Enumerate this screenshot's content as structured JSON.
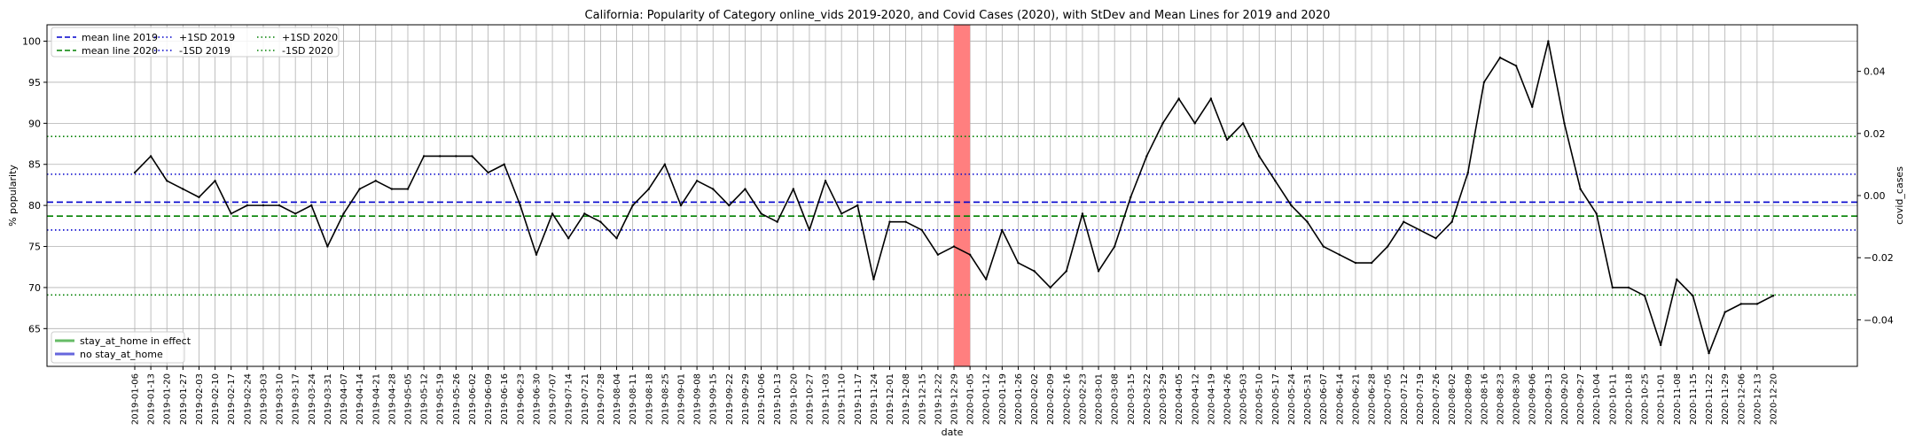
{
  "chart_data": {
    "type": "line",
    "title": "California: Popularity of Category online_vids 2019-2020, and Covid Cases (2020), with StDev and Mean Lines for 2019 and 2020",
    "xlabel": "date",
    "ylabel": "% popularity",
    "y2label": "covid_cases",
    "ylim": [
      60.4,
      102
    ],
    "y2lim": [
      -0.055,
      0.055
    ],
    "yticks": [
      65,
      70,
      75,
      80,
      85,
      90,
      95,
      100
    ],
    "y2ticks": [
      -0.04,
      -0.02,
      0.0,
      0.02,
      0.04
    ],
    "y2tick_labels": [
      "−0.04",
      "−0.02",
      "0.00",
      "0.02",
      "0.04"
    ],
    "grid": true,
    "x": [
      "2019-01-06",
      "2019-01-13",
      "2019-01-20",
      "2019-01-27",
      "2019-02-03",
      "2019-02-10",
      "2019-02-17",
      "2019-02-24",
      "2019-03-03",
      "2019-03-10",
      "2019-03-17",
      "2019-03-24",
      "2019-03-31",
      "2019-04-07",
      "2019-04-14",
      "2019-04-21",
      "2019-04-28",
      "2019-05-05",
      "2019-05-12",
      "2019-05-19",
      "2019-05-26",
      "2019-06-02",
      "2019-06-09",
      "2019-06-16",
      "2019-06-23",
      "2019-06-30",
      "2019-07-07",
      "2019-07-14",
      "2019-07-21",
      "2019-07-28",
      "2019-08-04",
      "2019-08-11",
      "2019-08-18",
      "2019-08-25",
      "2019-09-01",
      "2019-09-08",
      "2019-09-15",
      "2019-09-22",
      "2019-09-29",
      "2019-10-06",
      "2019-10-13",
      "2019-10-20",
      "2019-10-27",
      "2019-11-03",
      "2019-11-10",
      "2019-11-17",
      "2019-11-24",
      "2019-12-01",
      "2019-12-08",
      "2019-12-15",
      "2019-12-22",
      "2019-12-29",
      "2020-01-05",
      "2020-01-12",
      "2020-01-19",
      "2020-01-26",
      "2020-02-02",
      "2020-02-09",
      "2020-02-16",
      "2020-02-23",
      "2020-03-01",
      "2020-03-08",
      "2020-03-15",
      "2020-03-22",
      "2020-03-29",
      "2020-04-05",
      "2020-04-12",
      "2020-04-19",
      "2020-04-26",
      "2020-05-03",
      "2020-05-10",
      "2020-05-17",
      "2020-05-24",
      "2020-05-31",
      "2020-06-07",
      "2020-06-14",
      "2020-06-21",
      "2020-06-28",
      "2020-07-05",
      "2020-07-12",
      "2020-07-19",
      "2020-07-26",
      "2020-08-02",
      "2020-08-09",
      "2020-08-16",
      "2020-08-23",
      "2020-08-30",
      "2020-09-06",
      "2020-09-13",
      "2020-09-20",
      "2020-09-27",
      "2020-10-04",
      "2020-10-11",
      "2020-10-18",
      "2020-10-25",
      "2020-11-01",
      "2020-11-08",
      "2020-11-15",
      "2020-11-22",
      "2020-11-29",
      "2020-12-06",
      "2020-12-13",
      "2020-12-20"
    ],
    "series": [
      {
        "name": "",
        "color": "#000000",
        "values": [
          84,
          86,
          83,
          82,
          81,
          83,
          79,
          80,
          80,
          80,
          79,
          80,
          75,
          79,
          82,
          83,
          82,
          82,
          86,
          86,
          86,
          86,
          84,
          85,
          80,
          74,
          79,
          76,
          79,
          78,
          76,
          80,
          82,
          85,
          80,
          83,
          82,
          80,
          82,
          79,
          78,
          82,
          77,
          83,
          79,
          80,
          71,
          78,
          78,
          77,
          74,
          75,
          74,
          71,
          77,
          73,
          72,
          70,
          72,
          79,
          72,
          75,
          81,
          86,
          90,
          93,
          90,
          93,
          88,
          90,
          86,
          83,
          80,
          78,
          75,
          74,
          73,
          73,
          75,
          78,
          77,
          76,
          78,
          84,
          95,
          98,
          97,
          92,
          100,
          90,
          82,
          79,
          70,
          70,
          69,
          63,
          71,
          69,
          62,
          67,
          68,
          68,
          69
        ]
      }
    ],
    "reference_lines": [
      {
        "name": "mean line 2019",
        "value": 80.4,
        "color": "#0000cc",
        "style": "dashed"
      },
      {
        "name": "mean line 2020",
        "value": 78.7,
        "color": "#008000",
        "style": "dashed"
      },
      {
        "name": "+1SD 2019",
        "value": 83.8,
        "color": "#0000cc",
        "style": "dotted"
      },
      {
        "name": "-1SD 2019",
        "value": 77.0,
        "color": "#0000cc",
        "style": "dotted"
      },
      {
        "name": "+1SD 2020",
        "value": 88.4,
        "color": "#008000",
        "style": "dotted"
      },
      {
        "name": "-1SD 2020",
        "value": 69.1,
        "color": "#008000",
        "style": "dotted"
      }
    ],
    "highlight_band": {
      "from": "2019-12-29",
      "to": "2020-01-05",
      "color": "#ff7f7f"
    },
    "legend_top": {
      "placement": "upper-left",
      "entries": [
        "mean line 2019",
        "mean line 2020",
        "+1SD 2019",
        "-1SD 2019",
        "+1SD 2020",
        "-1SD 2020"
      ]
    },
    "legend_bottom": {
      "placement": "lower-left",
      "entries": [
        {
          "label": "stay_at_home in effect",
          "color": "#66bb66"
        },
        {
          "label": "no stay_at_home",
          "color": "#6666dd"
        }
      ]
    }
  }
}
